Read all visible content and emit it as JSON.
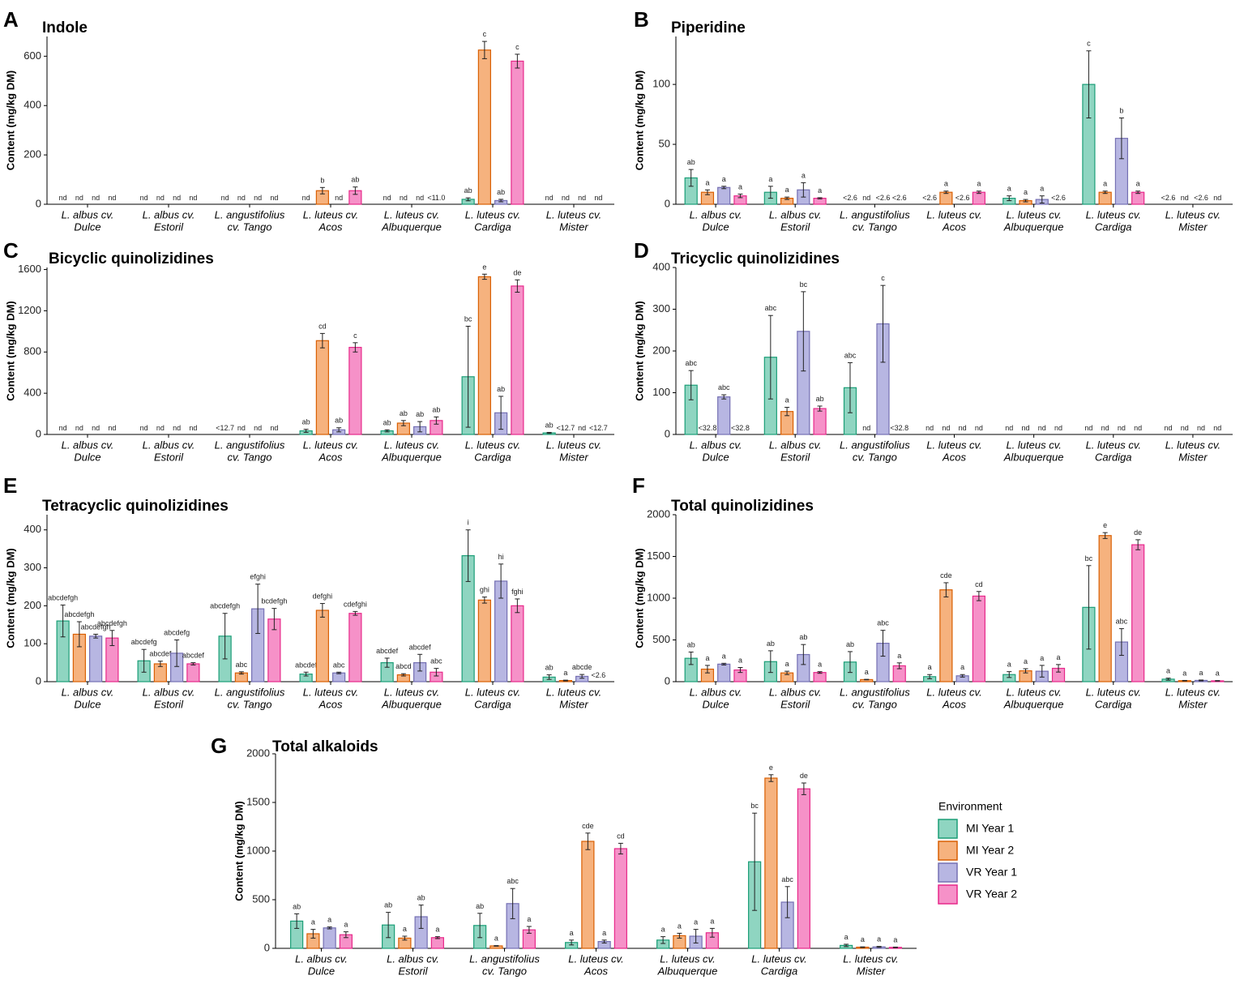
{
  "figure": {
    "legend": {
      "title": "Environment",
      "entries": [
        {
          "name": "MI Year 1",
          "color": "#8fd5c1",
          "edge": "#1b9e77"
        },
        {
          "name": "MI Year 2",
          "color": "#f6b27e",
          "edge": "#d95f02"
        },
        {
          "name": "VR Year 1",
          "color": "#b7b6e2",
          "edge": "#7570b3"
        },
        {
          "name": "VR Year 2",
          "color": "#f691c8",
          "edge": "#e7298a"
        }
      ]
    },
    "categories": [
      [
        "L. albus cv.",
        "Dulce"
      ],
      [
        "L. albus cv.",
        "Estoril"
      ],
      [
        "L. angustifolius",
        "cv. Tango"
      ],
      [
        "L. luteus cv.",
        "Acos"
      ],
      [
        "L. luteus cv.",
        "Albuquerque"
      ],
      [
        "L. luteus cv.",
        "Cardiga"
      ],
      [
        "L. luteus cv.",
        "Mister"
      ]
    ]
  },
  "chart_data": [
    {
      "panel": "A",
      "title": "Indole",
      "type": "bar",
      "ylabel": "Content (mg/kg DM)",
      "ylim": [
        0,
        680
      ],
      "yticks": [
        0,
        200,
        400,
        600
      ],
      "series": [
        {
          "name": "MI Year 1",
          "values": [
            null,
            null,
            null,
            null,
            null,
            20,
            null
          ],
          "errors": [
            0,
            0,
            0,
            0,
            0,
            6,
            0
          ],
          "labels": [
            "nd",
            "nd",
            "nd",
            "nd",
            "nd",
            "ab",
            "nd"
          ]
        },
        {
          "name": "MI Year 2",
          "values": [
            null,
            null,
            null,
            55,
            null,
            625,
            null
          ],
          "errors": [
            0,
            0,
            0,
            13,
            0,
            35,
            0
          ],
          "labels": [
            "nd",
            "nd",
            "nd",
            "b",
            "nd",
            "c",
            "nd"
          ]
        },
        {
          "name": "VR Year 1",
          "values": [
            null,
            null,
            null,
            null,
            null,
            15,
            null
          ],
          "errors": [
            0,
            0,
            0,
            0,
            0,
            5,
            0
          ],
          "labels": [
            "nd",
            "nd",
            "nd",
            "nd",
            "nd",
            "ab",
            "nd"
          ]
        },
        {
          "name": "VR Year 2",
          "values": [
            null,
            null,
            null,
            55,
            null,
            580,
            null
          ],
          "errors": [
            0,
            0,
            0,
            15,
            0,
            28,
            0
          ],
          "labels": [
            "nd",
            "nd",
            "nd",
            "ab",
            "<11.0",
            "c",
            "nd"
          ]
        }
      ]
    },
    {
      "panel": "B",
      "title": "Piperidine",
      "type": "bar",
      "ylabel": "Content (mg/kg DM)",
      "ylim": [
        0,
        140
      ],
      "yticks": [
        0,
        50,
        100
      ],
      "series": [
        {
          "name": "MI Year 1",
          "values": [
            22,
            10,
            null,
            null,
            5,
            100,
            null
          ],
          "errors": [
            7,
            5,
            0,
            0,
            2,
            28,
            0
          ],
          "labels": [
            "ab",
            "a",
            "<2.6",
            "<2.6",
            "a",
            "c",
            "<2.6"
          ]
        },
        {
          "name": "MI Year 2",
          "values": [
            10,
            5,
            null,
            10,
            3,
            10,
            null
          ],
          "errors": [
            2,
            1,
            0,
            1,
            1,
            1,
            0
          ],
          "labels": [
            "a",
            "a",
            "nd",
            "a",
            "a",
            "a",
            "nd"
          ]
        },
        {
          "name": "VR Year 1",
          "values": [
            14,
            12,
            null,
            null,
            4,
            55,
            null
          ],
          "errors": [
            1,
            6,
            0,
            0,
            3,
            17,
            0
          ],
          "labels": [
            "a",
            "a",
            "<2.6",
            "<2.6",
            "a",
            "b",
            "<2.6"
          ]
        },
        {
          "name": "VR Year 2",
          "values": [
            7,
            5,
            null,
            10,
            null,
            10,
            null
          ],
          "errors": [
            1.5,
            0.5,
            0,
            1,
            0,
            1,
            0
          ],
          "labels": [
            "a",
            "a",
            "<2.6",
            "a",
            "<2.6",
            "a",
            "nd"
          ]
        }
      ]
    },
    {
      "panel": "C",
      "title": "Bicyclic quinolizidines",
      "type": "bar",
      "ylabel": "Content (mg/kg DM)",
      "ylim": [
        0,
        1620
      ],
      "yticks": [
        0,
        400,
        800,
        1200,
        1600
      ],
      "series": [
        {
          "name": "MI Year 1",
          "values": [
            null,
            null,
            null,
            35,
            35,
            560,
            15
          ],
          "errors": [
            0,
            0,
            0,
            15,
            10,
            490,
            5
          ],
          "labels": [
            "nd",
            "nd",
            "<12.7",
            "ab",
            "ab",
            "bc",
            "ab"
          ]
        },
        {
          "name": "MI Year 2",
          "values": [
            null,
            null,
            null,
            910,
            110,
            1530,
            null
          ],
          "errors": [
            0,
            0,
            0,
            70,
            25,
            25,
            0
          ],
          "labels": [
            "nd",
            "nd",
            "nd",
            "cd",
            "ab",
            "e",
            "<12.7"
          ]
        },
        {
          "name": "VR Year 1",
          "values": [
            null,
            null,
            null,
            45,
            75,
            210,
            null
          ],
          "errors": [
            0,
            0,
            0,
            20,
            50,
            160,
            0
          ],
          "labels": [
            "nd",
            "nd",
            "nd",
            "ab",
            "ab",
            "ab",
            "nd"
          ]
        },
        {
          "name": "VR Year 2",
          "values": [
            null,
            null,
            null,
            845,
            135,
            1440,
            null
          ],
          "errors": [
            0,
            0,
            0,
            45,
            35,
            60,
            0
          ],
          "labels": [
            "nd",
            "nd",
            "nd",
            "c",
            "ab",
            "de",
            "<12.7"
          ]
        }
      ]
    },
    {
      "panel": "D",
      "title": "Tricyclic quinolizidines",
      "type": "bar",
      "ylabel": "Content (mg/kg DM)",
      "ylim": [
        0,
        400
      ],
      "yticks": [
        0,
        100,
        200,
        300,
        400
      ],
      "series": [
        {
          "name": "MI Year 1",
          "values": [
            118,
            185,
            112,
            null,
            null,
            null,
            null
          ],
          "errors": [
            35,
            100,
            60,
            0,
            0,
            0,
            0
          ],
          "labels": [
            "abc",
            "abc",
            "abc",
            "nd",
            "nd",
            "nd",
            "nd"
          ]
        },
        {
          "name": "MI Year 2",
          "values": [
            null,
            55,
            null,
            null,
            null,
            null,
            null
          ],
          "errors": [
            0,
            10,
            0,
            0,
            0,
            0,
            0
          ],
          "labels": [
            "<32.8",
            "a",
            "nd",
            "nd",
            "nd",
            "nd",
            "nd"
          ]
        },
        {
          "name": "VR Year 1",
          "values": [
            90,
            247,
            265,
            null,
            null,
            null,
            null
          ],
          "errors": [
            5,
            95,
            92,
            0,
            0,
            0,
            0
          ],
          "labels": [
            "abc",
            "bc",
            "c",
            "nd",
            "nd",
            "nd",
            "nd"
          ]
        },
        {
          "name": "VR Year 2",
          "values": [
            null,
            62,
            null,
            null,
            null,
            null,
            null
          ],
          "errors": [
            0,
            6,
            0,
            0,
            0,
            0,
            0
          ],
          "labels": [
            "<32.8",
            "ab",
            "<32.8",
            "nd",
            "nd",
            "nd",
            "nd"
          ]
        }
      ]
    },
    {
      "panel": "E",
      "title": "Tetracyclic quinolizidines",
      "type": "bar",
      "ylabel": "Content (mg/kg DM)",
      "ylim": [
        0,
        440
      ],
      "yticks": [
        0,
        100,
        200,
        300,
        400
      ],
      "series": [
        {
          "name": "MI Year 1",
          "values": [
            160,
            55,
            120,
            20,
            50,
            332,
            12
          ],
          "errors": [
            42,
            30,
            60,
            5,
            12,
            68,
            6
          ],
          "labels": [
            "abcdefgh",
            "abcdefg",
            "abcdefgh",
            "abcdef",
            "abcdef",
            "i",
            "ab"
          ]
        },
        {
          "name": "MI Year 2",
          "values": [
            125,
            47,
            23,
            188,
            18,
            215,
            3
          ],
          "errors": [
            33,
            7,
            3,
            18,
            3,
            8,
            1
          ],
          "labels": [
            "abcdefgh",
            "abcdef",
            "abc",
            "defghi",
            "abcd",
            "ghi",
            "a"
          ]
        },
        {
          "name": "VR Year 1",
          "values": [
            120,
            75,
            192,
            23,
            50,
            265,
            14
          ],
          "errors": [
            5,
            35,
            65,
            2,
            22,
            45,
            5
          ],
          "labels": [
            "abcdefgh",
            "abcdefg",
            "efghi",
            "abc",
            "abcdef",
            "hi",
            "abcde"
          ]
        },
        {
          "name": "VR Year 2",
          "values": [
            115,
            47,
            165,
            180,
            25,
            200,
            null
          ],
          "errors": [
            20,
            3,
            28,
            5,
            10,
            18,
            0
          ],
          "labels": [
            "abcdefgh",
            "abcdef",
            "bcdefgh",
            "cdefghi",
            "abc",
            "fghi",
            "<2.6"
          ]
        }
      ]
    },
    {
      "panel": "F",
      "title": "Total quinolizidines",
      "type": "bar",
      "ylabel": "Content (mg/kg DM)",
      "ylim": [
        0,
        2000
      ],
      "yticks": [
        0,
        500,
        1000,
        1500,
        2000
      ],
      "series": [
        {
          "name": "MI Year 1",
          "values": [
            280,
            240,
            235,
            60,
            85,
            890,
            30
          ],
          "errors": [
            75,
            130,
            125,
            25,
            35,
            500,
            12
          ],
          "labels": [
            "ab",
            "ab",
            "ab",
            "a",
            "a",
            "bc",
            "a"
          ]
        },
        {
          "name": "MI Year 2",
          "values": [
            150,
            105,
            25,
            1100,
            130,
            1750,
            12
          ],
          "errors": [
            45,
            20,
            3,
            85,
            25,
            35,
            3
          ],
          "labels": [
            "a",
            "a",
            "a",
            "cde",
            "a",
            "e",
            "a"
          ]
        },
        {
          "name": "VR Year 1",
          "values": [
            210,
            325,
            460,
            70,
            125,
            475,
            15
          ],
          "errors": [
            10,
            120,
            155,
            15,
            70,
            160,
            5
          ],
          "labels": [
            "a",
            "ab",
            "abc",
            "a",
            "a",
            "abc",
            "a"
          ]
        },
        {
          "name": "VR Year 2",
          "values": [
            140,
            110,
            190,
            1025,
            160,
            1640,
            10
          ],
          "errors": [
            30,
            10,
            35,
            55,
            45,
            60,
            3
          ],
          "labels": [
            "a",
            "a",
            "a",
            "cd",
            "a",
            "de",
            "a"
          ]
        }
      ]
    },
    {
      "panel": "G",
      "title": "Total alkaloids",
      "type": "bar",
      "ylabel": "Content (mg/kg DM)",
      "ylim": [
        0,
        2000
      ],
      "yticks": [
        0,
        500,
        1000,
        1500,
        2000
      ],
      "series": [
        {
          "name": "MI Year 1",
          "values": [
            280,
            240,
            235,
            60,
            85,
            890,
            30
          ],
          "errors": [
            75,
            130,
            125,
            25,
            35,
            500,
            12
          ],
          "labels": [
            "ab",
            "ab",
            "ab",
            "a",
            "a",
            "bc",
            "a"
          ]
        },
        {
          "name": "MI Year 2",
          "values": [
            150,
            105,
            25,
            1100,
            130,
            1750,
            12
          ],
          "errors": [
            45,
            20,
            3,
            85,
            25,
            35,
            3
          ],
          "labels": [
            "a",
            "a",
            "a",
            "cde",
            "a",
            "e",
            "a"
          ]
        },
        {
          "name": "VR Year 1",
          "values": [
            210,
            325,
            460,
            70,
            125,
            475,
            15
          ],
          "errors": [
            10,
            120,
            155,
            15,
            70,
            160,
            5
          ],
          "labels": [
            "a",
            "ab",
            "abc",
            "a",
            "a",
            "abc",
            "a"
          ]
        },
        {
          "name": "VR Year 2",
          "values": [
            140,
            110,
            190,
            1025,
            160,
            1640,
            10
          ],
          "errors": [
            30,
            10,
            35,
            55,
            45,
            60,
            3
          ],
          "labels": [
            "a",
            "a",
            "a",
            "cd",
            "a",
            "de",
            "a"
          ]
        }
      ]
    }
  ]
}
